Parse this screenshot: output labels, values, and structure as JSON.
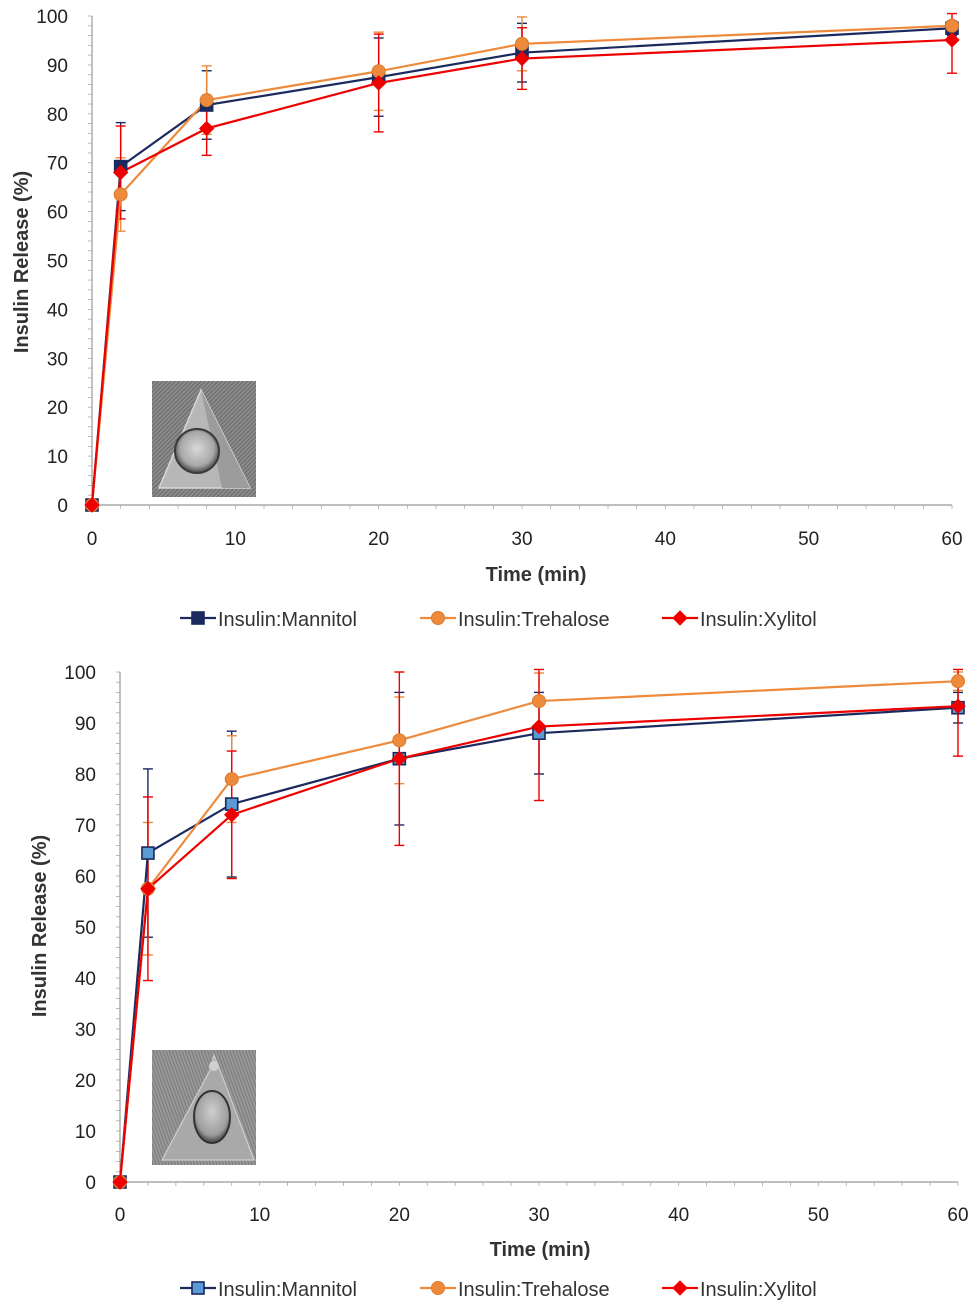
{
  "chart_data": [
    {
      "type": "line",
      "xlabel": "Time (min)",
      "ylabel": "Insulin Release (%)",
      "xlim": [
        0,
        60
      ],
      "ylim": [
        0,
        100
      ],
      "x_ticks": [
        "0",
        "10",
        "20",
        "30",
        "40",
        "50",
        "60"
      ],
      "y_ticks": [
        "0",
        "10",
        "20",
        "30",
        "40",
        "50",
        "60",
        "70",
        "80",
        "90",
        "100"
      ],
      "grid": false,
      "legend_position": "bottom",
      "inset": "micrograph of a pyramid-shaped microneedle with a round cavity",
      "series": [
        {
          "name": "Insulin:Mannitol",
          "color": "#1b2a5e",
          "fill": "#1b2a5e",
          "marker": "square",
          "x": [
            0,
            2,
            8,
            20,
            30,
            60
          ],
          "y": [
            0,
            69.2,
            81.8,
            87.5,
            92.5,
            97.5
          ],
          "err": [
            0,
            9,
            7,
            8,
            6,
            1.5
          ]
        },
        {
          "name": "Insulin:Trehalose",
          "color": "#ee8a3b",
          "fill": "#ee8a3b",
          "marker": "circle",
          "x": [
            0,
            2,
            8,
            20,
            30,
            60
          ],
          "y": [
            0,
            63.5,
            82.8,
            88.7,
            94.3,
            98
          ],
          "err": [
            0,
            7.5,
            7,
            8,
            5.5,
            1
          ]
        },
        {
          "name": "Insulin:Xylitol",
          "color": "#ee0000",
          "fill": "#ee0000",
          "marker": "diamond",
          "x": [
            0,
            2,
            8,
            20,
            30,
            60
          ],
          "y": [
            0,
            68,
            77,
            86.3,
            91.3,
            95.1
          ],
          "err": [
            0,
            9.5,
            5.5,
            10,
            6.3,
            6.8
          ]
        }
      ]
    },
    {
      "type": "line",
      "xlabel": "Time (min)",
      "ylabel": "Insulin Release (%)",
      "xlim": [
        0,
        60
      ],
      "ylim": [
        0,
        100
      ],
      "x_ticks": [
        "0",
        "10",
        "20",
        "30",
        "40",
        "50",
        "60"
      ],
      "y_ticks": [
        "0",
        "10",
        "20",
        "30",
        "40",
        "50",
        "60",
        "70",
        "80",
        "90",
        "100"
      ],
      "grid": false,
      "legend_position": "bottom",
      "inset": "micrograph of a conical microneedle with an oval cavity",
      "series": [
        {
          "name": "Insulin:Mannitol",
          "color": "#1b2a5e",
          "fill": "#5b9bd5",
          "marker": "square",
          "x": [
            0,
            2,
            8,
            20,
            30,
            60
          ],
          "y": [
            0,
            64.5,
            74.1,
            83,
            88,
            93
          ],
          "err": [
            0,
            16.5,
            14.3,
            13,
            8,
            3
          ]
        },
        {
          "name": "Insulin:Trehalose",
          "color": "#ee8a3b",
          "fill": "#ee8a3b",
          "marker": "circle",
          "x": [
            0,
            2,
            8,
            20,
            30,
            60
          ],
          "y": [
            0,
            57.5,
            79,
            86.6,
            94.3,
            98.2
          ],
          "err": [
            0,
            13,
            8.5,
            8.5,
            5.5,
            1.8
          ]
        },
        {
          "name": "Insulin:Xylitol",
          "color": "#ee0000",
          "fill": "#ee0000",
          "marker": "diamond",
          "x": [
            0,
            2,
            8,
            20,
            30,
            60
          ],
          "y": [
            0,
            57.5,
            72,
            83,
            89.3,
            93.3
          ],
          "err": [
            0,
            18,
            12.5,
            17,
            14.5,
            9.8
          ]
        }
      ]
    }
  ]
}
